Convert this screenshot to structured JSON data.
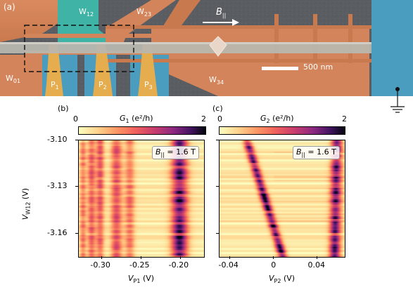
{
  "panel_a": {
    "tag": "(a)",
    "labels": {
      "w12": "W",
      "w12_sub": "12",
      "w23": "W",
      "w23_sub": "23",
      "w01": "W",
      "w01_sub": "01",
      "w34": "W",
      "w34_sub": "34",
      "p1": "P",
      "p1_sub": "1",
      "p2": "P",
      "p2_sub": "2",
      "p3": "P",
      "p3_sub": "3"
    },
    "field": {
      "symbol": "B",
      "subscript": "||"
    },
    "scalebar": "500 nm",
    "colors": {
      "substrate": "#5a5d62",
      "gate_orange": "#d98a5e",
      "gate_teal": "#3fb3a6",
      "gate_yellow": "#e6ad4e",
      "gate_blue": "#4a9dbf",
      "wire": "#b8b6ae"
    }
  },
  "panel_b": {
    "tag": "(b)",
    "colorbar": {
      "min_label": "0",
      "max_label": "2",
      "title_sym": "G",
      "title_sub": "1",
      "title_unit": " (e²/h)"
    },
    "annotation": {
      "sym": "B",
      "sub": "||",
      "value": " = 1.6 T"
    },
    "ylabel": {
      "sym": "V",
      "sub": "W12",
      "unit": " (V)"
    },
    "xlabel": {
      "sym": "V",
      "sub": "P1",
      "unit": " (V)"
    }
  },
  "panel_c": {
    "tag": "(c)",
    "colorbar": {
      "min_label": "0",
      "max_label": "2",
      "title_sym": "G",
      "title_sub": "2",
      "title_unit": " (e²/h)"
    },
    "annotation": {
      "sym": "B",
      "sub": "||",
      "value": " = 1.6 T"
    },
    "xlabel": {
      "sym": "V",
      "sub": "P2",
      "unit": " (V)"
    }
  },
  "chart_data": [
    {
      "type": "heatmap",
      "panel": "b",
      "x_ticks": [
        "-0.30",
        "-0.25",
        "-0.20"
      ],
      "x_tick_values": [
        -0.3,
        -0.25,
        -0.2
      ],
      "y_ticks": [
        "-3.10",
        "-3.13",
        "-3.16"
      ],
      "y_tick_values": [
        -3.1,
        -3.13,
        -3.16
      ],
      "xlim": [
        -0.33,
        -0.17
      ],
      "ylim": [
        -3.175,
        -3.1
      ],
      "zlim": [
        0,
        2
      ],
      "features": [
        {
          "x": -0.325,
          "width": 0.004,
          "peak": 0.7
        },
        {
          "x": -0.314,
          "width": 0.005,
          "peak": 0.8
        },
        {
          "x": -0.303,
          "width": 0.005,
          "peak": 0.9
        },
        {
          "x": -0.282,
          "width": 0.007,
          "peak": 1.0
        },
        {
          "x": -0.265,
          "width": 0.006,
          "peak": 0.7
        },
        {
          "x": -0.201,
          "width": 0.01,
          "peak": 1.7
        }
      ]
    },
    {
      "type": "heatmap",
      "panel": "c",
      "x_ticks": [
        "-0.04",
        "0",
        "0.04"
      ],
      "x_tick_values": [
        -0.04,
        0.0,
        0.04
      ],
      "y_ticks": [
        "-3.10",
        "-3.13",
        "-3.16"
      ],
      "y_tick_values": [
        -3.1,
        -3.13,
        -3.16
      ],
      "xlim": [
        -0.05,
        0.065
      ],
      "ylim": [
        -3.175,
        -3.1
      ],
      "zlim": [
        0,
        2
      ],
      "lines": [
        {
          "x_at_top": -0.025,
          "x_at_bottom": 0.008,
          "width": 0.004,
          "peak": 1.8
        },
        {
          "x_at_top": 0.058,
          "x_at_bottom": 0.056,
          "width": 0.005,
          "peak": 1.6
        }
      ]
    }
  ]
}
